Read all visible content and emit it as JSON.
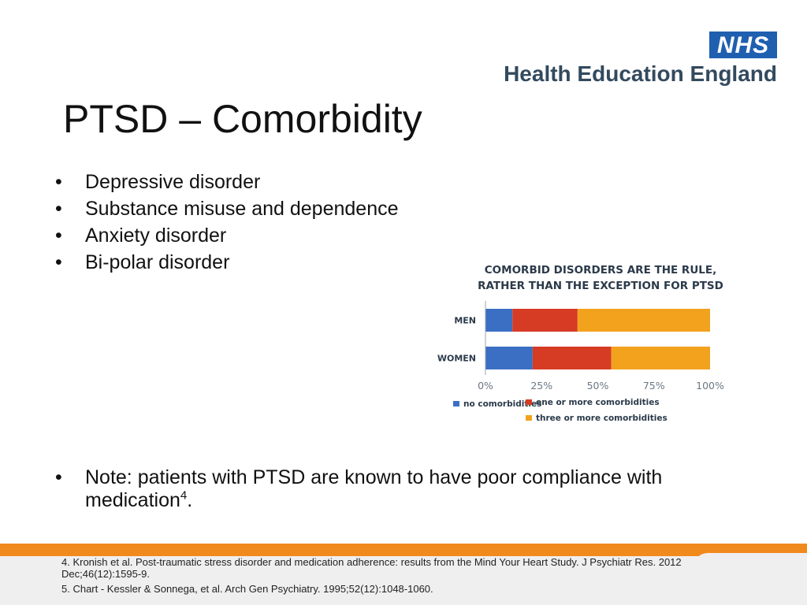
{
  "logo": {
    "nhs": "NHS",
    "org": "Health Education England"
  },
  "title": "PTSD – Comorbidity",
  "bullets": [
    "Depressive disorder",
    "Substance misuse and dependence",
    "Anxiety disorder",
    "Bi-polar disorder"
  ],
  "note": {
    "text": "Note: patients with PTSD are known to have poor compliance with medication",
    "sup": "4",
    "end": "."
  },
  "references": [
    "4. Kronish et al. Post-traumatic stress disorder and medication adherence: results from the Mind Your Heart Study. J Psychiatr Res. 2012 Dec;46(12):1595-9.",
    "5. Chart - Kessler & Sonnega, et al. Arch Gen Psychiatry. 1995;52(12):1048-1060."
  ],
  "chart_data": {
    "type": "bar",
    "orientation": "horizontal",
    "stacked": true,
    "title": "COMORBID DISORDERS ARE THE RULE, RATHER THAN THE EXCEPTION FOR PTSD",
    "title_lines": [
      "COMORBID DISORDERS ARE THE RULE,",
      "RATHER THAN THE EXCEPTION FOR PTSD"
    ],
    "categories": [
      "MEN",
      "WOMEN"
    ],
    "series": [
      {
        "name": "no comorbidities",
        "values": [
          12,
          21
        ],
        "color": "#3a6fc4"
      },
      {
        "name": "one or more comorbidities",
        "values": [
          29,
          35
        ],
        "color": "#d63b24"
      },
      {
        "name": "three or more comorbidities",
        "values": [
          59,
          44
        ],
        "color": "#f3a21e"
      }
    ],
    "x_ticks": [
      "0%",
      "25%",
      "50%",
      "75%",
      "100%"
    ],
    "xlim": [
      0,
      100
    ],
    "legend_position": "bottom"
  }
}
